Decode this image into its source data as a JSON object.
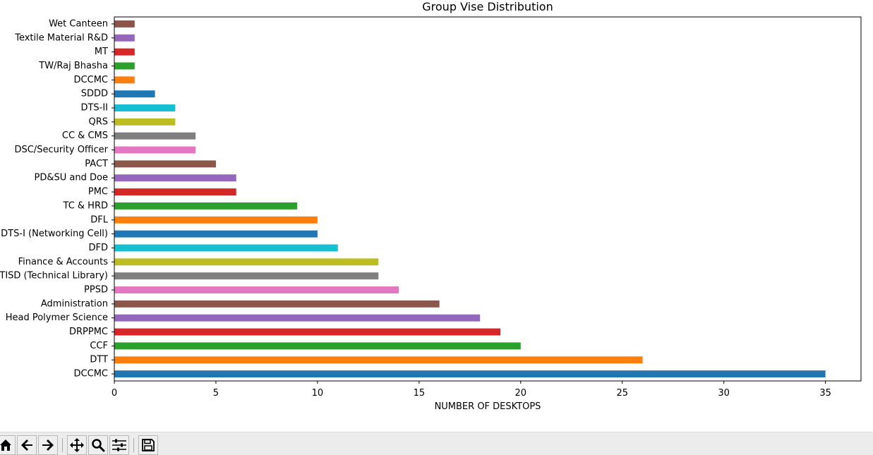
{
  "chart_data": {
    "type": "bar",
    "orientation": "horizontal",
    "title": "Group Vise Distribution",
    "xlabel": "NUMBER OF DESKTOPS",
    "ylabel": "",
    "xlim": [
      0,
      36.75
    ],
    "xticks": [
      0,
      5,
      10,
      15,
      20,
      25,
      30,
      35
    ],
    "grid": false,
    "categories": [
      "DCCMC",
      "DTT",
      "CCF",
      "DRPPMC",
      "Head Polymer Science",
      "Administration",
      "PPSD",
      "TISD (Technical Library)",
      "Finance & Accounts",
      "DFD",
      "DTS-I (Networking Cell)",
      "DFL",
      "TC & HRD",
      "PMC",
      "PD&SU and Doe",
      "PACT",
      "DSC/Security Officer",
      "CC & CMS",
      "QRS",
      "DTS-II",
      "SDDD",
      "DCCMC ",
      "TW/Raj Bhasha",
      "MT",
      "Textile Material R&D",
      "Wet Canteen"
    ],
    "values": [
      35,
      26,
      20,
      19,
      18,
      16,
      14,
      13,
      13,
      11,
      10,
      10,
      9,
      6,
      6,
      5,
      4,
      4,
      3,
      3,
      2,
      1,
      1,
      1,
      1,
      1
    ],
    "colors": [
      "#1f77b4",
      "#ff7f0e",
      "#2ca02c",
      "#d62728",
      "#9467bd",
      "#8c564b",
      "#e377c2",
      "#7f7f7f",
      "#bcbd22",
      "#17becf"
    ]
  },
  "toolbar": {
    "buttons": [
      {
        "name": "home-button",
        "icon": "home-icon"
      },
      {
        "name": "back-button",
        "icon": "arrow-left-icon"
      },
      {
        "name": "forward-button",
        "icon": "arrow-right-icon"
      },
      {
        "name": "pan-button",
        "icon": "move-icon"
      },
      {
        "name": "zoom-button",
        "icon": "magnifier-icon"
      },
      {
        "name": "configure-subplots-button",
        "icon": "sliders-icon"
      },
      {
        "name": "save-button",
        "icon": "floppy-disk-icon"
      }
    ]
  }
}
